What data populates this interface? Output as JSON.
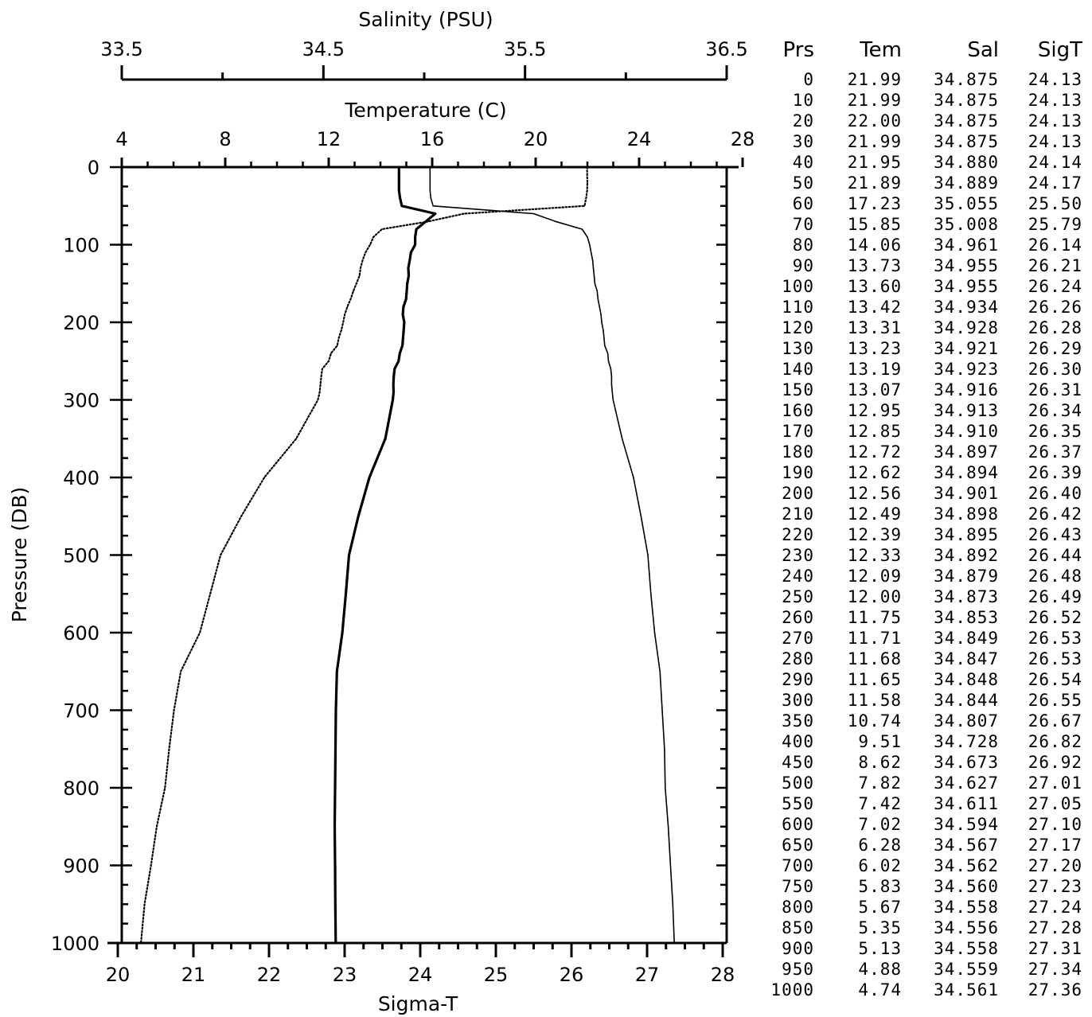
{
  "chart_data": {
    "type": "line",
    "axes": {
      "salinity": {
        "label": "Salinity (PSU)",
        "range": [
          33.5,
          36.5
        ],
        "ticks": [
          "33.5",
          "34.5",
          "35.5",
          "36.5"
        ]
      },
      "temperature": {
        "label": "Temperature (C)",
        "range": [
          4,
          30
        ],
        "ticks": [
          "4",
          "8",
          "12",
          "16",
          "20",
          "24",
          "28"
        ]
      },
      "pressure": {
        "label": "Pressure (DB)",
        "range": [
          0,
          1000
        ],
        "ticks": [
          "0",
          "100",
          "200",
          "300",
          "400",
          "500",
          "600",
          "700",
          "800",
          "900",
          "1000"
        ]
      },
      "sigma_t": {
        "label": "Sigma-T",
        "range": [
          20,
          28
        ],
        "ticks": [
          "20",
          "21",
          "22",
          "23",
          "24",
          "25",
          "26",
          "27",
          "28"
        ]
      }
    },
    "pressure": [
      0,
      10,
      20,
      30,
      40,
      50,
      60,
      70,
      80,
      90,
      100,
      110,
      120,
      130,
      140,
      150,
      160,
      170,
      180,
      190,
      200,
      210,
      220,
      230,
      240,
      250,
      260,
      270,
      280,
      290,
      300,
      350,
      400,
      450,
      500,
      550,
      600,
      650,
      700,
      750,
      800,
      850,
      900,
      950,
      1000
    ],
    "series": [
      {
        "key": "temperature",
        "axis": "temperature",
        "style": "dotted",
        "values": [
          21.99,
          21.99,
          22.0,
          21.99,
          21.95,
          21.89,
          17.23,
          15.85,
          14.06,
          13.73,
          13.6,
          13.42,
          13.31,
          13.23,
          13.19,
          13.07,
          12.95,
          12.85,
          12.72,
          12.62,
          12.56,
          12.49,
          12.39,
          12.33,
          12.09,
          12.0,
          11.75,
          11.71,
          11.68,
          11.65,
          11.58,
          10.74,
          9.51,
          8.62,
          7.82,
          7.42,
          7.02,
          6.28,
          6.02,
          5.83,
          5.67,
          5.35,
          5.13,
          4.88,
          4.74
        ]
      },
      {
        "key": "salinity",
        "axis": "salinity",
        "style": "solid-thick",
        "values": [
          34.875,
          34.875,
          34.875,
          34.875,
          34.88,
          34.889,
          35.055,
          35.008,
          34.961,
          34.955,
          34.955,
          34.934,
          34.928,
          34.921,
          34.923,
          34.916,
          34.913,
          34.91,
          34.897,
          34.894,
          34.901,
          34.898,
          34.895,
          34.892,
          34.879,
          34.873,
          34.853,
          34.849,
          34.847,
          34.848,
          34.844,
          34.807,
          34.728,
          34.673,
          34.627,
          34.611,
          34.594,
          34.567,
          34.562,
          34.56,
          34.558,
          34.556,
          34.558,
          34.559,
          34.561
        ]
      },
      {
        "key": "sigma_t",
        "axis": "sigma_t",
        "style": "solid-thin",
        "values": [
          24.13,
          24.13,
          24.13,
          24.13,
          24.14,
          24.17,
          25.5,
          25.79,
          26.14,
          26.21,
          26.24,
          26.26,
          26.28,
          26.29,
          26.3,
          26.31,
          26.34,
          26.35,
          26.37,
          26.39,
          26.4,
          26.42,
          26.43,
          26.44,
          26.48,
          26.49,
          26.52,
          26.53,
          26.53,
          26.54,
          26.55,
          26.67,
          26.82,
          26.92,
          27.01,
          27.05,
          27.1,
          27.17,
          27.2,
          27.23,
          27.24,
          27.28,
          27.31,
          27.34,
          27.36
        ]
      }
    ]
  },
  "table": {
    "headers": {
      "prs": "Prs",
      "tem": "Tem",
      "sal": "Sal",
      "sigt": "SigT"
    },
    "rows": [
      [
        "0",
        "21.99",
        "34.875",
        "24.13"
      ],
      [
        "10",
        "21.99",
        "34.875",
        "24.13"
      ],
      [
        "20",
        "22.00",
        "34.875",
        "24.13"
      ],
      [
        "30",
        "21.99",
        "34.875",
        "24.13"
      ],
      [
        "40",
        "21.95",
        "34.880",
        "24.14"
      ],
      [
        "50",
        "21.89",
        "34.889",
        "24.17"
      ],
      [
        "60",
        "17.23",
        "35.055",
        "25.50"
      ],
      [
        "70",
        "15.85",
        "35.008",
        "25.79"
      ],
      [
        "80",
        "14.06",
        "34.961",
        "26.14"
      ],
      [
        "90",
        "13.73",
        "34.955",
        "26.21"
      ],
      [
        "100",
        "13.60",
        "34.955",
        "26.24"
      ],
      [
        "110",
        "13.42",
        "34.934",
        "26.26"
      ],
      [
        "120",
        "13.31",
        "34.928",
        "26.28"
      ],
      [
        "130",
        "13.23",
        "34.921",
        "26.29"
      ],
      [
        "140",
        "13.19",
        "34.923",
        "26.30"
      ],
      [
        "150",
        "13.07",
        "34.916",
        "26.31"
      ],
      [
        "160",
        "12.95",
        "34.913",
        "26.34"
      ],
      [
        "170",
        "12.85",
        "34.910",
        "26.35"
      ],
      [
        "180",
        "12.72",
        "34.897",
        "26.37"
      ],
      [
        "190",
        "12.62",
        "34.894",
        "26.39"
      ],
      [
        "200",
        "12.56",
        "34.901",
        "26.40"
      ],
      [
        "210",
        "12.49",
        "34.898",
        "26.42"
      ],
      [
        "220",
        "12.39",
        "34.895",
        "26.43"
      ],
      [
        "230",
        "12.33",
        "34.892",
        "26.44"
      ],
      [
        "240",
        "12.09",
        "34.879",
        "26.48"
      ],
      [
        "250",
        "12.00",
        "34.873",
        "26.49"
      ],
      [
        "260",
        "11.75",
        "34.853",
        "26.52"
      ],
      [
        "270",
        "11.71",
        "34.849",
        "26.53"
      ],
      [
        "280",
        "11.68",
        "34.847",
        "26.53"
      ],
      [
        "290",
        "11.65",
        "34.848",
        "26.54"
      ],
      [
        "300",
        "11.58",
        "34.844",
        "26.55"
      ],
      [
        "350",
        "10.74",
        "34.807",
        "26.67"
      ],
      [
        "400",
        "9.51",
        "34.728",
        "26.82"
      ],
      [
        "450",
        "8.62",
        "34.673",
        "26.92"
      ],
      [
        "500",
        "7.82",
        "34.627",
        "27.01"
      ],
      [
        "550",
        "7.42",
        "34.611",
        "27.05"
      ],
      [
        "600",
        "7.02",
        "34.594",
        "27.10"
      ],
      [
        "650",
        "6.28",
        "34.567",
        "27.17"
      ],
      [
        "700",
        "6.02",
        "34.562",
        "27.20"
      ],
      [
        "750",
        "5.83",
        "34.560",
        "27.23"
      ],
      [
        "800",
        "5.67",
        "34.558",
        "27.24"
      ],
      [
        "850",
        "5.35",
        "34.556",
        "27.28"
      ],
      [
        "900",
        "5.13",
        "34.558",
        "27.31"
      ],
      [
        "950",
        "4.88",
        "34.559",
        "27.34"
      ],
      [
        "1000",
        "4.74",
        "34.561",
        "27.36"
      ]
    ]
  }
}
